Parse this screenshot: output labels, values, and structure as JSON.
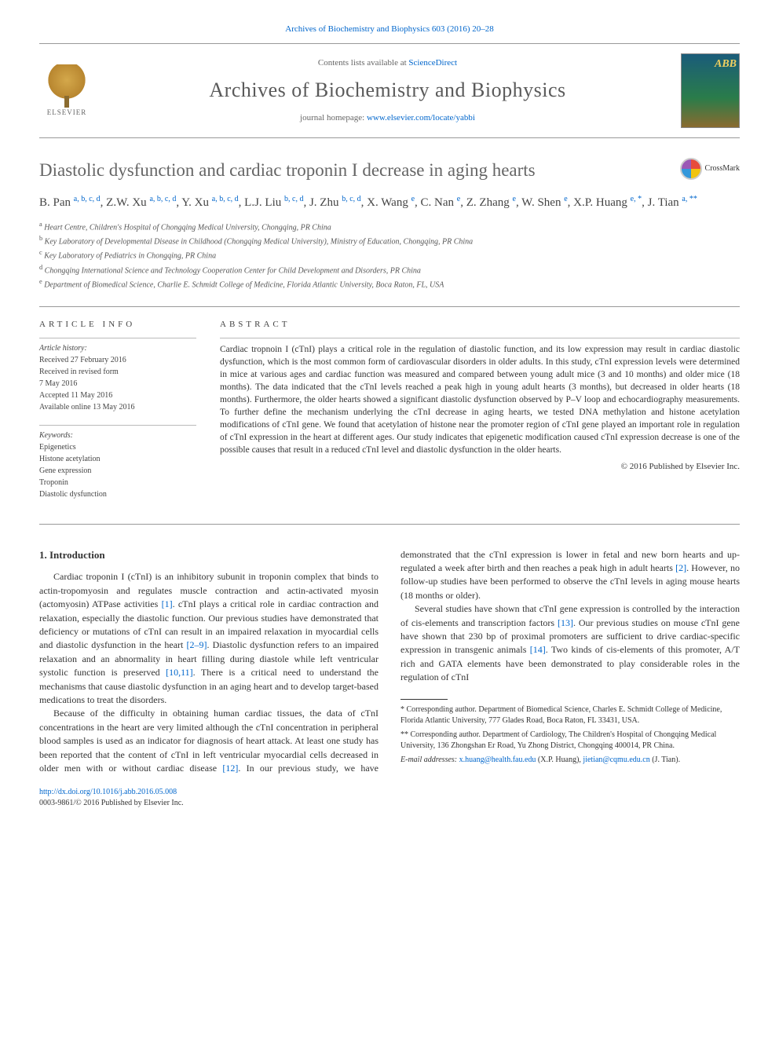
{
  "header": {
    "citation": "Archives of Biochemistry and Biophysics 603 (2016) 20–28",
    "contents_prefix": "Contents lists available at ",
    "contents_link": "ScienceDirect",
    "journal_name": "Archives of Biochemistry and Biophysics",
    "homepage_prefix": "journal homepage: ",
    "homepage_url": "www.elsevier.com/locate/yabbi",
    "publisher": "ELSEVIER",
    "cover_abbrev": "ABB"
  },
  "article": {
    "title": "Diastolic dysfunction and cardiac troponin I decrease in aging hearts",
    "crossmark": "CrossMark",
    "authors_html": "B. Pan <sup>a, b, c, d</sup>, Z.W. Xu <sup>a, b, c, d</sup>, Y. Xu <sup>a, b, c, d</sup>, L.J. Liu <sup>b, c, d</sup>, J. Zhu <sup>b, c, d</sup>, X. Wang <sup>e</sup>, C. Nan <sup>e</sup>, Z. Zhang <sup>e</sup>, W. Shen <sup>e</sup>, X.P. Huang <sup>e, *</sup>, J. Tian <sup>a, **</sup>",
    "affiliations": {
      "a": "Heart Centre, Children's Hospital of Chongqing Medical University, Chongqing, PR China",
      "b": "Key Laboratory of Developmental Disease in Childhood (Chongqing Medical University), Ministry of Education, Chongqing, PR China",
      "c": "Key Laboratory of Pediatrics in Chongqing, PR China",
      "d": "Chongqing International Science and Technology Cooperation Center for Child Development and Disorders, PR China",
      "e": "Department of Biomedical Science, Charlie E. Schmidt College of Medicine, Florida Atlantic University, Boca Raton, FL, USA"
    }
  },
  "info": {
    "heading": "ARTICLE INFO",
    "history_label": "Article history:",
    "history": [
      "Received 27 February 2016",
      "Received in revised form",
      "7 May 2016",
      "Accepted 11 May 2016",
      "Available online 13 May 2016"
    ],
    "keywords_label": "Keywords:",
    "keywords": [
      "Epigenetics",
      "Histone acetylation",
      "Gene expression",
      "Troponin",
      "Diastolic dysfunction"
    ]
  },
  "abstract": {
    "heading": "ABSTRACT",
    "text": "Cardiac tropnoin I (cTnI) plays a critical role in the regulation of diastolic function, and its low expression may result in cardiac diastolic dysfunction, which is the most common form of cardiovascular disorders in older adults. In this study, cTnI expression levels were determined in mice at various ages and cardiac function was measured and compared between young adult mice (3 and 10 months) and older mice (18 months). The data indicated that the cTnI levels reached a peak high in young adult hearts (3 months), but decreased in older hearts (18 months). Furthermore, the older hearts showed a significant diastolic dysfunction observed by P–V loop and echocardiography measurements. To further define the mechanism underlying the cTnI decrease in aging hearts, we tested DNA methylation and histone acetylation modifications of cTnI gene. We found that acetylation of histone near the promoter region of cTnI gene played an important role in regulation of cTnI expression in the heart at different ages. Our study indicates that epigenetic modification caused cTnI expression decrease is one of the possible causes that result in a reduced cTnI level and diastolic dysfunction in the older hearts.",
    "copyright": "© 2016 Published by Elsevier Inc."
  },
  "body": {
    "intro_heading": "1. Introduction",
    "p1_a": "Cardiac troponin I (cTnI) is an inhibitory subunit in troponin complex that binds to actin-tropomyosin and regulates muscle contraction and actin-activated myosin (actomyosin) ATPase activities ",
    "p1_ref1": "[1]",
    "p1_b": ". cTnI plays a critical role in cardiac contraction and relaxation, especially the diastolic function. Our previous studies have demonstrated that deficiency or mutations of cTnI can result in an impaired relaxation in myocardial cells and diastolic dysfunction in the heart ",
    "p1_ref2": "[2–9]",
    "p1_c": ". Diastolic dysfunction refers to an impaired relaxation and an abnormality in heart filling during diastole while left ventricular systolic function is preserved ",
    "p1_ref3": "[10,11]",
    "p1_d": ". There is a critical need to understand the mechanisms that cause diastolic dysfunction in an aging heart and to develop target-based medications to treat the disorders.",
    "p2_a": "Because of the difficulty in obtaining human cardiac tissues, the data of cTnI concentrations in the heart are very limited although the cTnI concentration in peripheral blood samples is used as an indicator for diagnosis of heart attack. At least one study has been reported that the content of cTnI in left ventricular myocardial cells decreased in older men with or without cardiac disease ",
    "p2_ref1": "[12]",
    "p2_b": ". In our previous study, we have demonstrated that the cTnI expression is lower in fetal and new born hearts and up-regulated a week after birth and then reaches a peak high in adult hearts ",
    "p2_ref2": "[2]",
    "p2_c": ". However, no follow-up studies have been performed to observe the cTnI levels in aging mouse hearts (18 months or older).",
    "p3_a": "Several studies have shown that cTnI gene expression is controlled by the interaction of cis-elements and transcription factors ",
    "p3_ref1": "[13]",
    "p3_b": ". Our previous studies on mouse cTnI gene have shown that 230 bp of proximal promoters are sufficient to drive cardiac-specific expression in transgenic animals ",
    "p3_ref2": "[14]",
    "p3_c": ". Two kinds of cis-elements of this promoter, A/T rich and GATA elements have been demonstrated to play considerable roles in the regulation of cTnI"
  },
  "footnotes": {
    "corr1": "* Corresponding author. Department of Biomedical Science, Charles E. Schmidt College of Medicine, Florida Atlantic University, 777 Glades Road, Boca Raton, FL 33431, USA.",
    "corr2": "** Corresponding author. Department of Cardiology, The Children's Hospital of Chongqing Medical University, 136 Zhongshan Er Road, Yu Zhong District, Chongqing 400014, PR China.",
    "email_label": "E-mail addresses:",
    "email1": "x.huang@health.fau.edu",
    "email1_name": " (X.P. Huang), ",
    "email2": "jietian@cqmu.edu.cn",
    "email2_name": " (J. Tian)."
  },
  "footer": {
    "doi": "http://dx.doi.org/10.1016/j.abb.2016.05.008",
    "issn_line": "0003-9861/© 2016 Published by Elsevier Inc."
  },
  "colors": {
    "link": "#0066cc",
    "title_gray": "#666666",
    "text": "#333333"
  }
}
